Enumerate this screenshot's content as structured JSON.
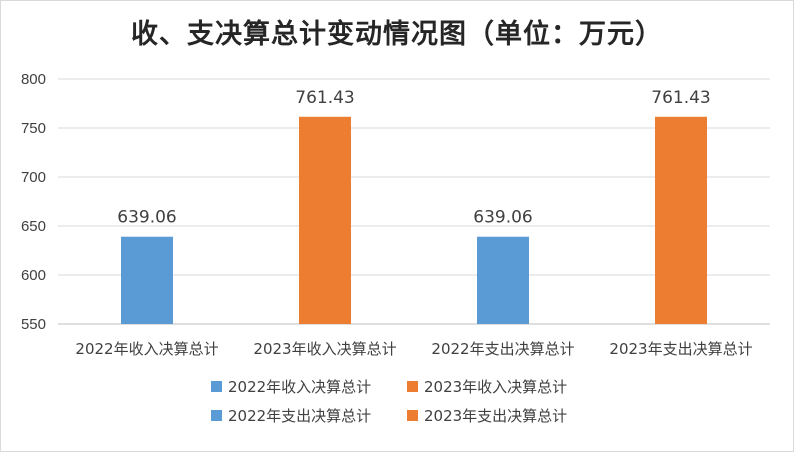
{
  "chart_data": {
    "type": "bar",
    "title": "收、支决算总计变动情况图（单位：万元）",
    "xlabel": "",
    "ylabel": "",
    "ylim": [
      550,
      800
    ],
    "yticks": [
      550,
      600,
      650,
      700,
      750,
      800
    ],
    "grid": true,
    "legend_position": "bottom",
    "categories": [
      "2022年收入决算总计",
      "2023年收入决算总计",
      "2022年支出决算总计",
      "2023年支出决算总计"
    ],
    "values": [
      639.06,
      761.43,
      639.06,
      761.43
    ],
    "data_labels": [
      "639.06",
      "761.43",
      "639.06",
      "761.43"
    ],
    "colors": [
      "#5b9bd5",
      "#ed7d31",
      "#5b9bd5",
      "#ed7d31"
    ],
    "legend": [
      {
        "label": "2022年收入决算总计",
        "color": "#5b9bd5"
      },
      {
        "label": "2023年收入决算总计",
        "color": "#ed7d31"
      },
      {
        "label": "2022年支出决算总计",
        "color": "#5b9bd5"
      },
      {
        "label": "2023年支出决算总计",
        "color": "#ed7d31"
      }
    ]
  }
}
